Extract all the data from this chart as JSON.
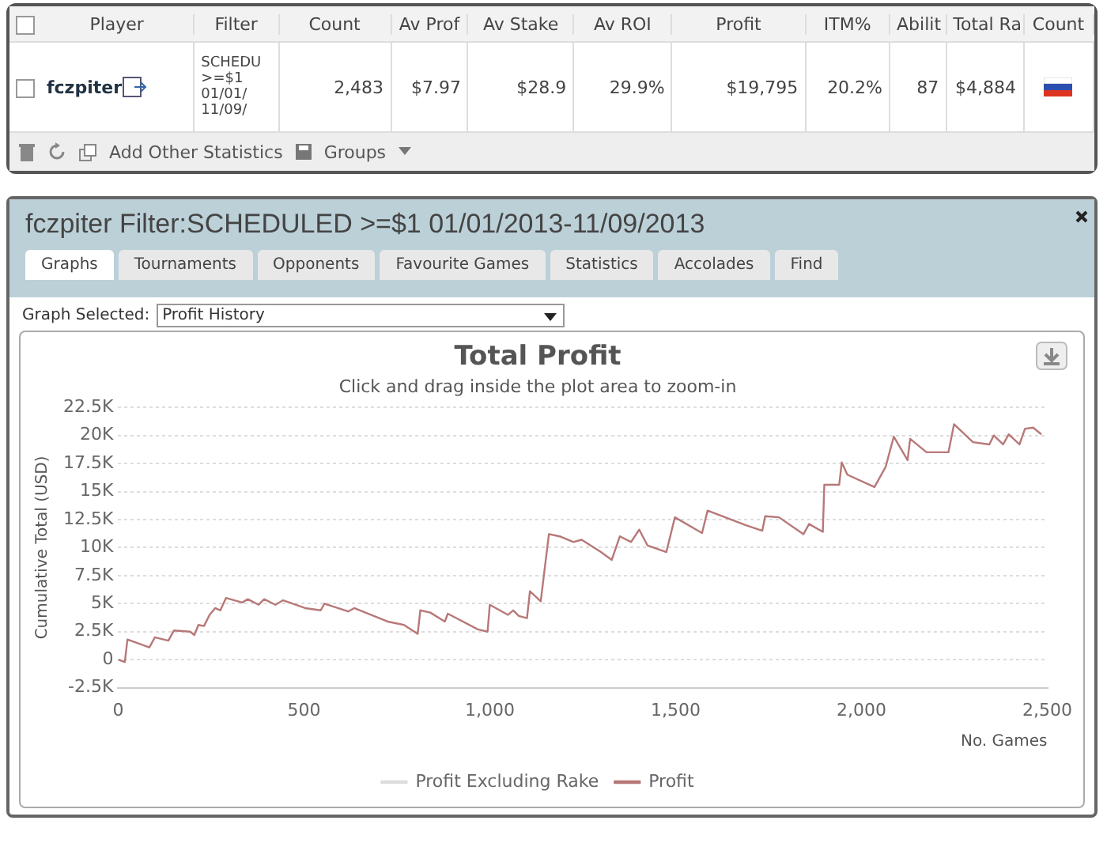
{
  "chart_data": [
    {
      "type": "other",
      "annotations": [
        "Player",
        "Filter",
        "Count",
        "Av Prof",
        "Av Stake",
        "Av ROI",
        "Profit",
        "ITM%",
        "Abilit",
        "Total Ra",
        "Count",
        "fczpiter",
        "SCHEDU >=$1 01/01/ 11/09/",
        "2,483",
        "$7.97",
        "$28.9",
        "29.9%",
        "$19,795",
        "20.2%",
        "87",
        "$4,884",
        "Add Other Statistics",
        "Groups"
      ]
    },
    {
      "type": "line",
      "title": "Total Profit",
      "subtitle": "Click and drag inside the plot area to zoom-in",
      "xlabel": "No. Games",
      "ylabel": "Cumulative Total (USD)",
      "annotations": [
        "fczpiter Filter:SCHEDULED >=$1 01/01/2013-11/09/2013",
        "Graphs",
        "Tournaments",
        "Opponents",
        "Favourite Games",
        "Statistics",
        "Accolades",
        "Find",
        "Graph Selected:",
        "Profit History"
      ],
      "x": [
        0,
        18,
        25,
        84,
        99,
        135,
        150,
        194,
        205,
        216,
        231,
        246,
        261,
        275,
        290,
        334,
        349,
        378,
        393,
        423,
        444,
        503,
        545,
        555,
        619,
        635,
        725,
        769,
        806,
        813,
        840,
        879,
        887,
        968,
        994,
        1000,
        1049,
        1063,
        1078,
        1100,
        1108,
        1137,
        1159,
        1188,
        1225,
        1247,
        1299,
        1328,
        1350,
        1380,
        1402,
        1424,
        1475,
        1498,
        1571,
        1586,
        1689,
        1733,
        1741,
        1778,
        1844,
        1859,
        1896,
        1900,
        1940,
        1947,
        1962,
        2035,
        2065,
        2087,
        2124,
        2131,
        2175,
        2234,
        2249,
        2300,
        2344,
        2356,
        2381,
        2396,
        2425,
        2440,
        2462,
        2484
      ],
      "series": [
        {
          "name": "Profit Excluding Rake",
          "color": "#dddddd",
          "values": [
            null,
            null,
            null,
            null,
            null,
            null,
            null,
            null,
            null,
            null,
            null,
            null,
            null,
            null,
            null,
            null,
            null,
            null,
            null,
            null,
            null,
            null,
            null,
            null,
            null,
            null,
            null,
            null,
            null,
            null,
            null,
            null,
            null,
            null,
            null,
            null,
            null,
            null,
            null,
            null,
            null,
            null,
            null,
            null,
            null,
            null,
            null,
            null,
            null,
            null,
            null,
            null,
            null,
            null,
            null,
            null,
            null,
            null,
            null,
            null,
            null,
            null,
            null,
            null,
            null,
            null,
            null,
            null,
            null,
            null,
            null,
            null,
            null,
            null,
            null,
            null,
            null,
            null,
            null,
            null,
            null,
            null,
            null,
            null
          ]
        },
        {
          "name": "Profit",
          "color": "#b87878",
          "values": [
            0,
            -200,
            1800,
            1100,
            2000,
            1700,
            2600,
            2500,
            2200,
            3100,
            3000,
            4000,
            4600,
            4400,
            5500,
            5100,
            5400,
            4900,
            5400,
            4900,
            5300,
            4600,
            4400,
            5000,
            4300,
            4600,
            3400,
            3100,
            2300,
            4400,
            4200,
            3400,
            4100,
            2700,
            2500,
            4900,
            4000,
            4400,
            3900,
            3700,
            6100,
            5200,
            11200,
            11000,
            10500,
            10700,
            9600,
            8900,
            11000,
            10500,
            11600,
            10200,
            9600,
            12700,
            11300,
            13300,
            12000,
            11500,
            12800,
            12700,
            11200,
            12100,
            11400,
            15600,
            15600,
            17600,
            16500,
            15400,
            17200,
            19900,
            17800,
            19700,
            18500,
            18500,
            21000,
            19400,
            19200,
            20000,
            19200,
            20100,
            19200,
            20600,
            20700,
            20100
          ]
        }
      ],
      "xlim": [
        0,
        2500
      ],
      "xticks": [
        0,
        500,
        {
          "value": 1000,
          "label": "1,000"
        },
        {
          "value": 1500,
          "label": "1,500"
        },
        {
          "value": 2000,
          "label": "2,000"
        },
        {
          "value": 2500,
          "label": "2,500"
        }
      ],
      "ylim": [
        -2500,
        22500
      ],
      "yticks": [
        {
          "value": -2500,
          "label": "-2.5K"
        },
        0,
        {
          "value": 2500,
          "label": "2.5K"
        },
        {
          "value": 5000,
          "label": "5K"
        },
        {
          "value": 7500,
          "label": "7.5K"
        },
        {
          "value": 10000,
          "label": "10K"
        },
        {
          "value": 12500,
          "label": "12.5K"
        },
        {
          "value": 15000,
          "label": "15K"
        },
        {
          "value": 17500,
          "label": "17.5K"
        },
        {
          "value": 20000,
          "label": "20K"
        },
        {
          "value": 22500,
          "label": "22.5K"
        }
      ],
      "grid": "y",
      "legend": "bottom",
      "marker": "none",
      "line_style": "solid"
    }
  ]
}
